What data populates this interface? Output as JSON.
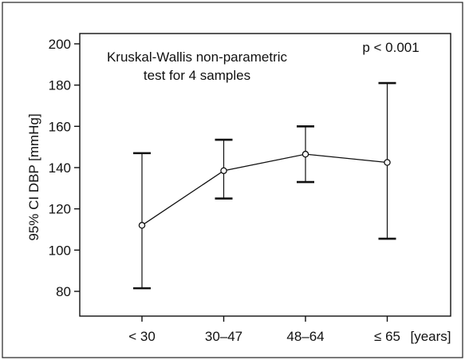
{
  "chart_data": {
    "type": "line",
    "subtype": "error-bar",
    "title": "",
    "xlabel": "",
    "x_unit": "[years]",
    "ylabel": "95% CI DBP [mmHg]",
    "ylim": [
      68,
      205
    ],
    "yticks": [
      80,
      100,
      120,
      140,
      160,
      180,
      200
    ],
    "categories": [
      "< 30",
      "30–47",
      "48–64",
      "≤ 65"
    ],
    "series": [
      {
        "name": "",
        "values": [
          112,
          138.5,
          146.5,
          142.5
        ],
        "lower": [
          81.5,
          125,
          133,
          105.5
        ],
        "upper": [
          147,
          153.5,
          160,
          181
        ]
      }
    ],
    "annotations": {
      "test_line1": "Kruskal-Wallis non-parametric",
      "test_line2": "test for 4 samples",
      "p_value": "p < 0.001"
    },
    "grid": false,
    "legend": "none",
    "colors": {
      "line": "#111111",
      "marker_fill": "#ffffff",
      "frame": "#111111"
    }
  }
}
